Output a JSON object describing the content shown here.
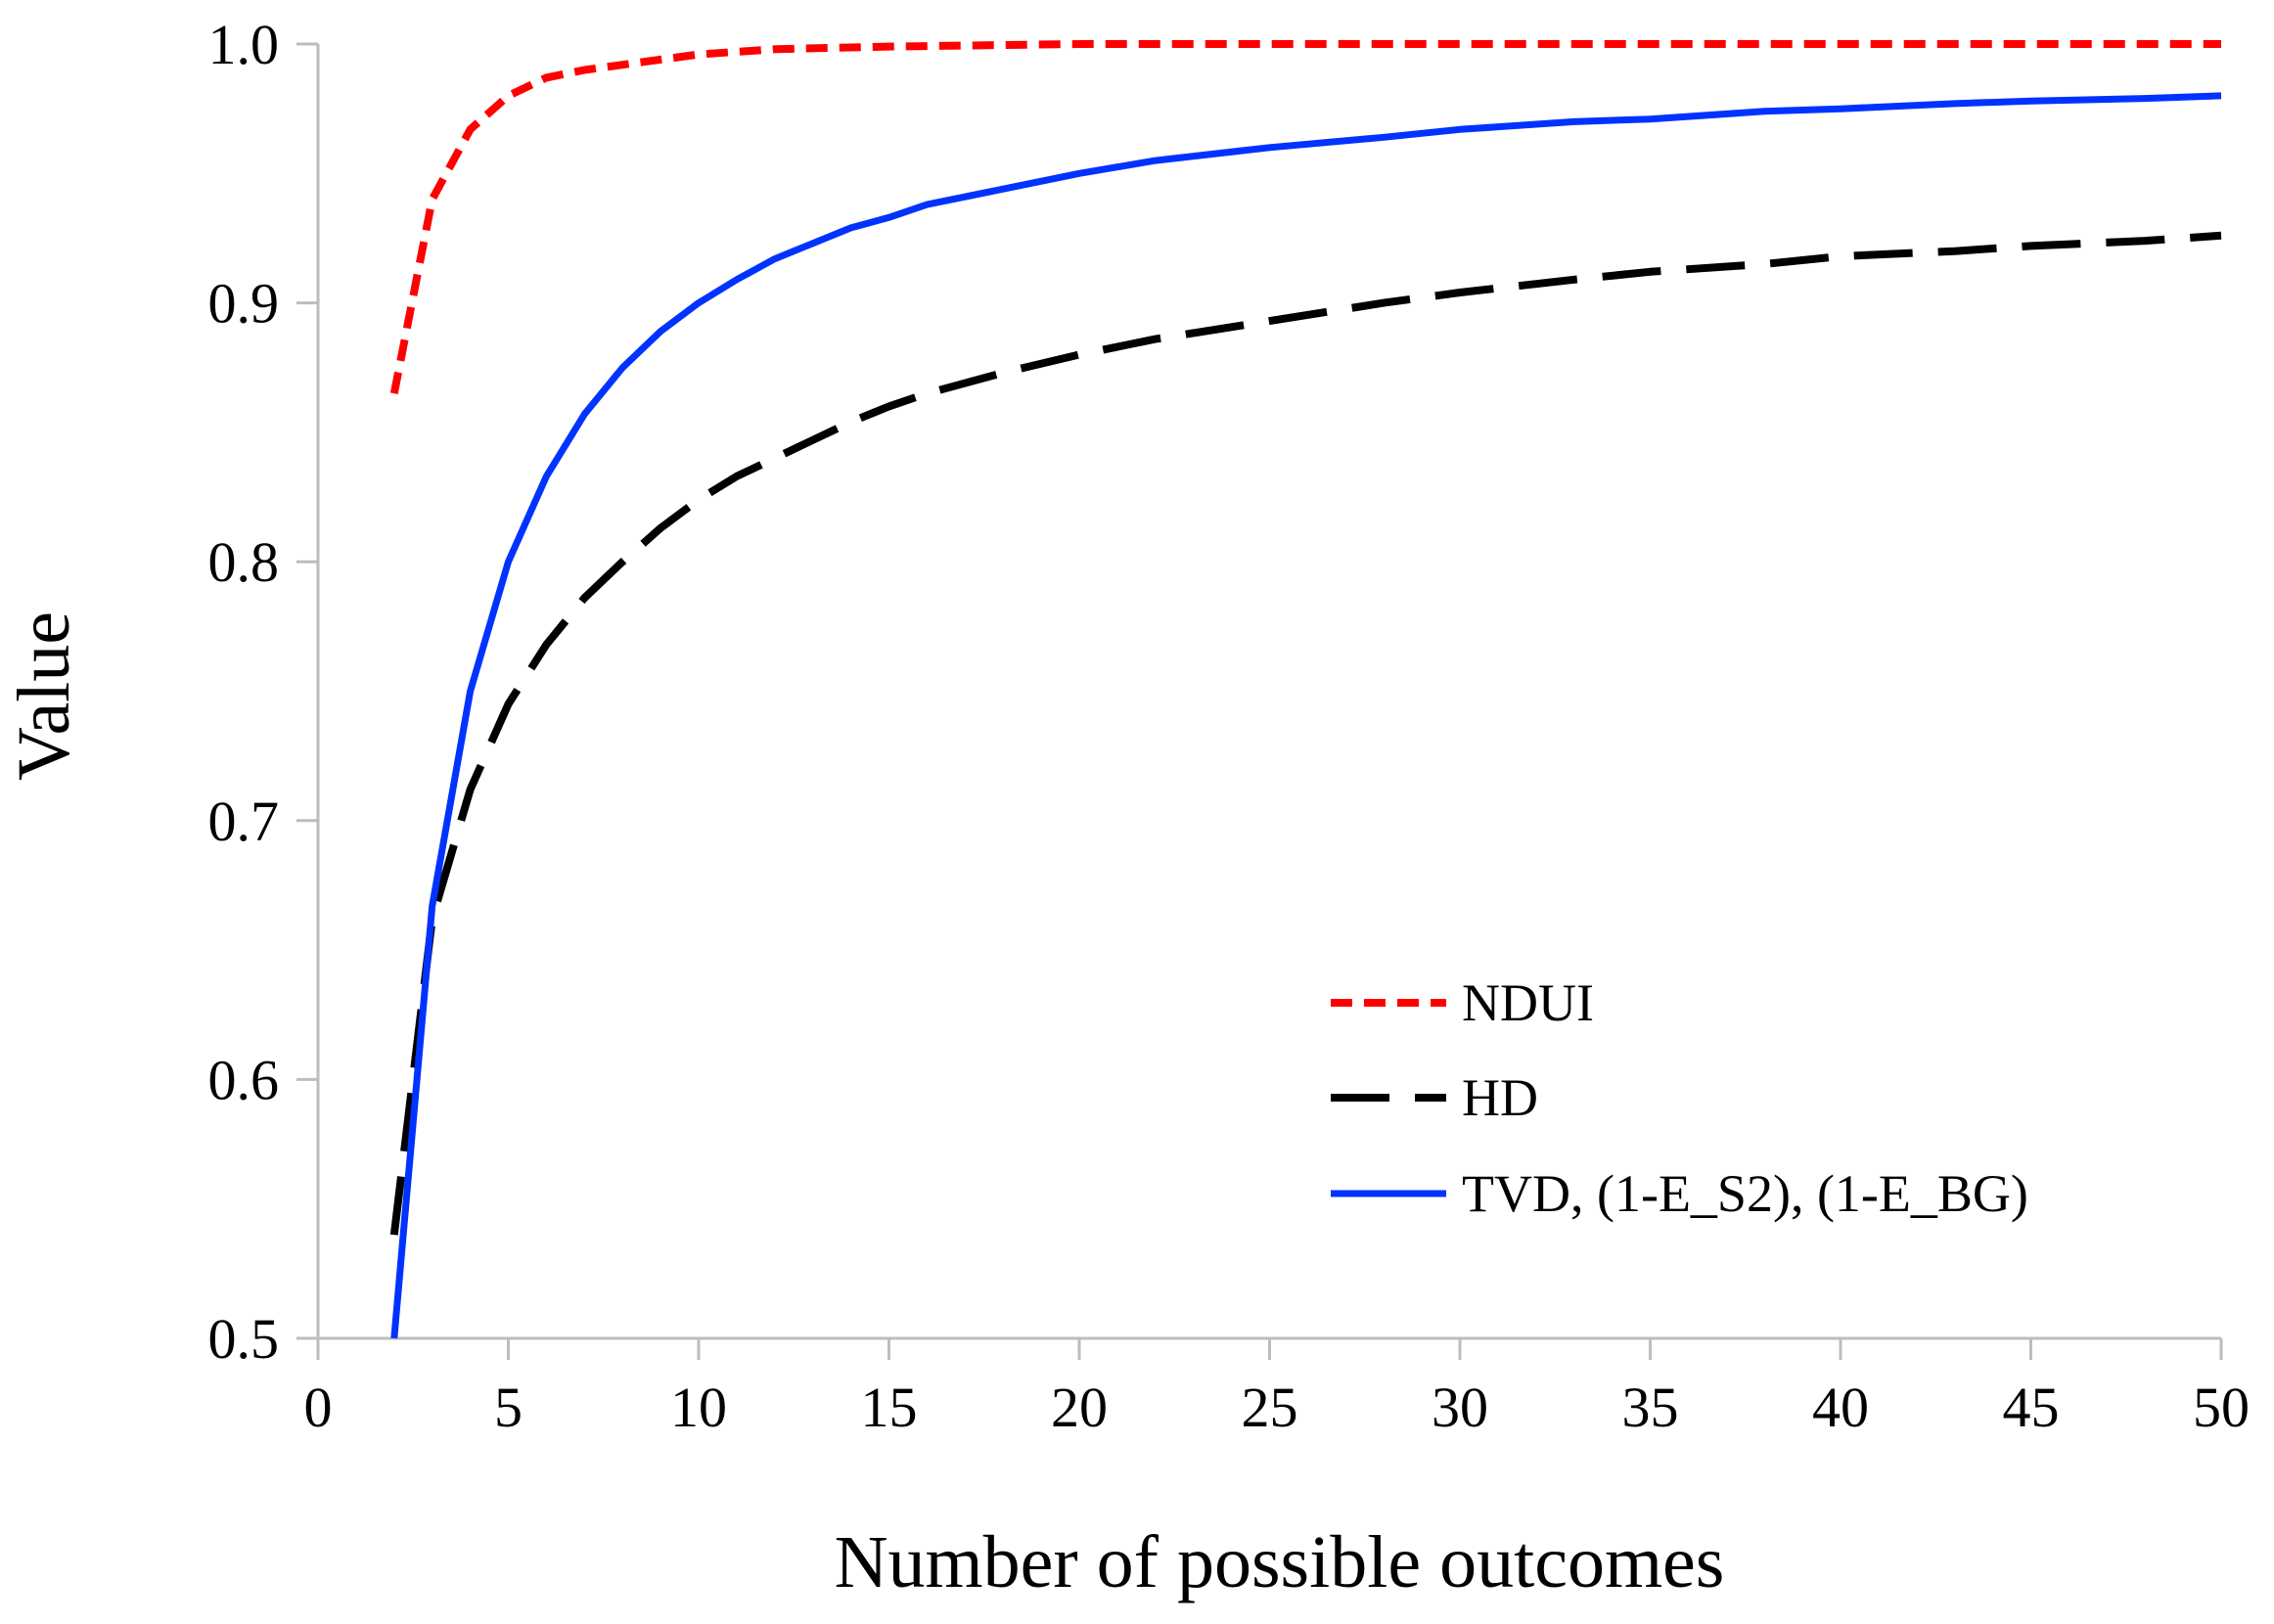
{
  "chart_data": {
    "type": "line",
    "title": "",
    "xlabel": "Number of possible outcomes",
    "ylabel": "Value",
    "xlim": [
      0,
      50
    ],
    "ylim": [
      0.5,
      1.0
    ],
    "xticks": [
      0,
      5,
      10,
      15,
      20,
      25,
      30,
      35,
      40,
      45,
      50
    ],
    "yticks": [
      0.5,
      0.6,
      0.7,
      0.8,
      0.9,
      1.0
    ],
    "ytick_labels": [
      "0.5",
      "0.6",
      "0.7",
      "0.8",
      "0.9",
      "1.0"
    ],
    "grid": false,
    "legend_position": "bottom-right",
    "series": [
      {
        "name": "NDUI",
        "color": "#ff0000",
        "style": "short-dash",
        "x": [
          2,
          3,
          4,
          5,
          6,
          7,
          8,
          9,
          10,
          12,
          15,
          20,
          25,
          30,
          35,
          40,
          45,
          50
        ],
        "y": [
          0.865,
          0.94,
          0.967,
          0.98,
          0.987,
          0.99,
          0.992,
          0.994,
          0.996,
          0.998,
          0.999,
          1.0,
          1.0,
          1.0,
          1.0,
          1.0,
          1.0,
          1.0
        ]
      },
      {
        "name": "HD",
        "color": "#000000",
        "style": "long-dash",
        "x": [
          2,
          3,
          4,
          5,
          6,
          7,
          8,
          9,
          10,
          11,
          12,
          13,
          14,
          15,
          16,
          18,
          20,
          22,
          25,
          28,
          30,
          33,
          35,
          38,
          40,
          43,
          45,
          48,
          50
        ],
        "y": [
          0.54,
          0.662,
          0.712,
          0.745,
          0.768,
          0.786,
          0.8,
          0.813,
          0.824,
          0.833,
          0.84,
          0.847,
          0.854,
          0.86,
          0.865,
          0.873,
          0.88,
          0.886,
          0.893,
          0.9,
          0.904,
          0.909,
          0.912,
          0.915,
          0.918,
          0.92,
          0.922,
          0.924,
          0.926
        ]
      },
      {
        "name": "TVD, (1-E_S2), (1-E_BG)",
        "color": "#0033ff",
        "style": "solid",
        "x": [
          2,
          3,
          4,
          5,
          6,
          7,
          8,
          9,
          10,
          11,
          12,
          13,
          14,
          15,
          16,
          18,
          20,
          22,
          25,
          28,
          30,
          33,
          35,
          38,
          40,
          43,
          45,
          48,
          50
        ],
        "y": [
          0.5,
          0.667,
          0.75,
          0.8,
          0.833,
          0.857,
          0.875,
          0.889,
          0.9,
          0.909,
          0.917,
          0.923,
          0.929,
          0.933,
          0.938,
          0.944,
          0.95,
          0.955,
          0.96,
          0.964,
          0.967,
          0.97,
          0.971,
          0.974,
          0.975,
          0.977,
          0.978,
          0.979,
          0.98
        ]
      }
    ]
  }
}
